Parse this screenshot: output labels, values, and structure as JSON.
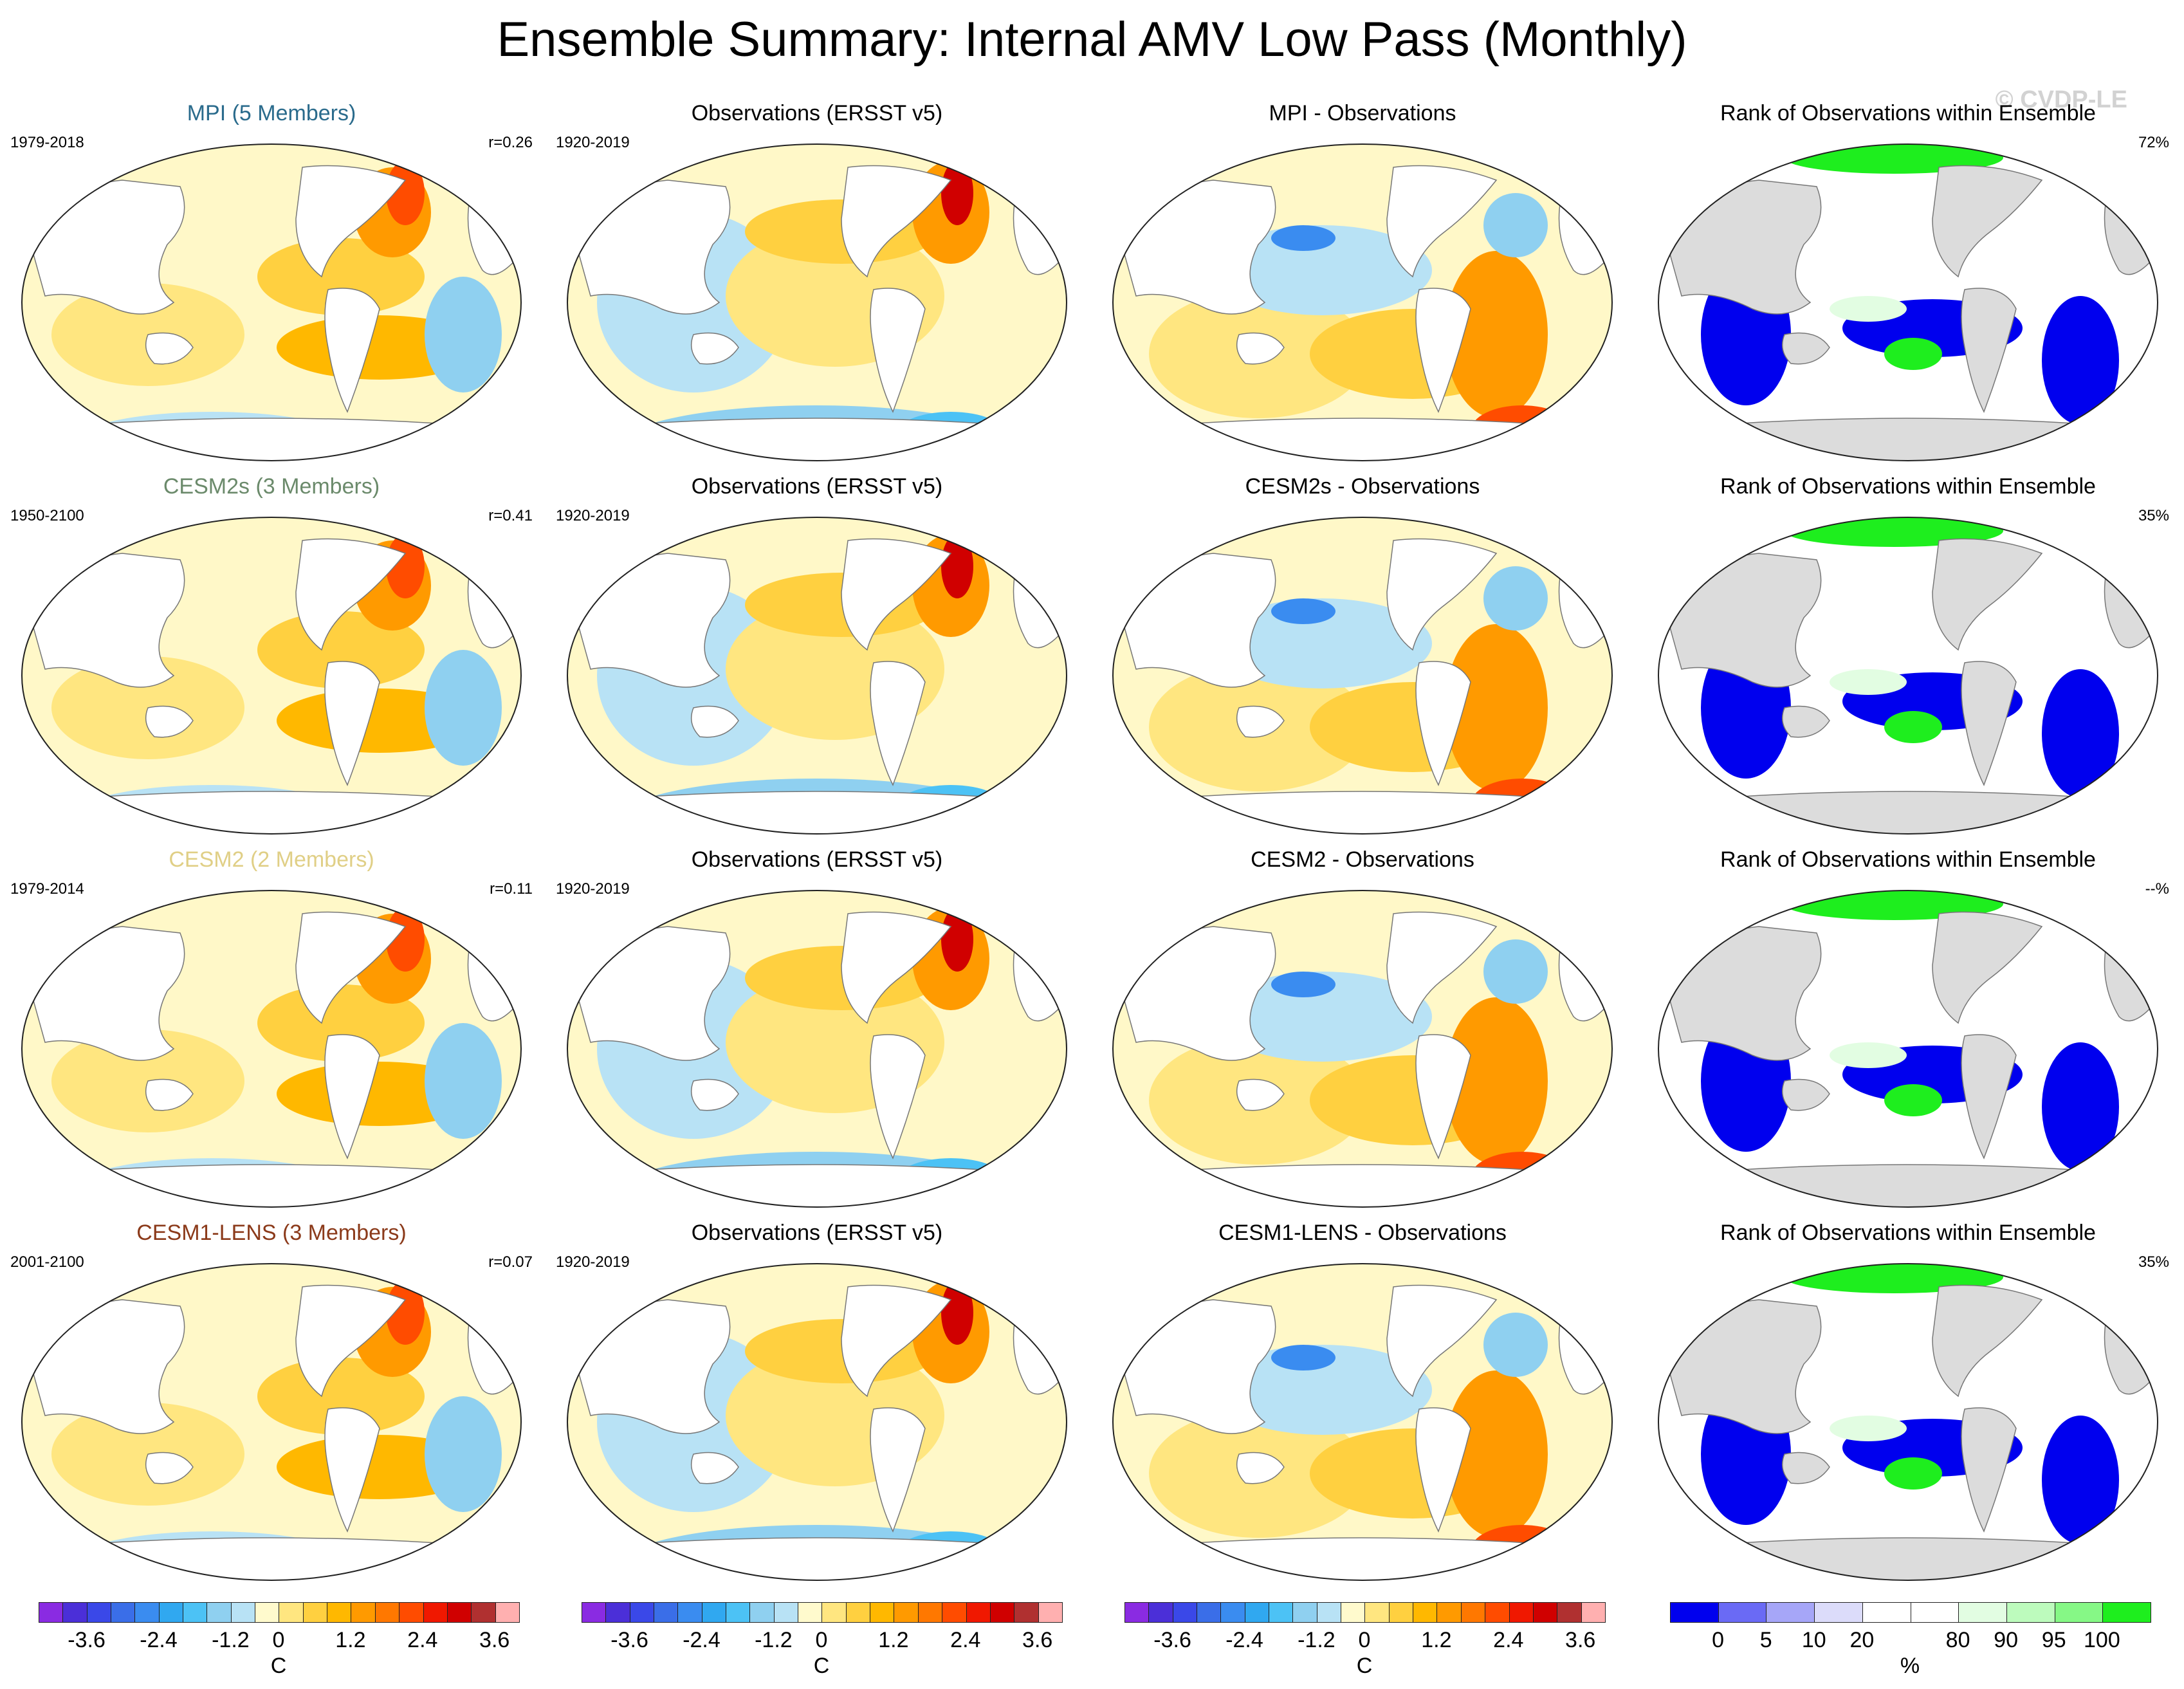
{
  "title": "Ensemble Summary: Internal AMV Low Pass (Monthly)",
  "watermark": "© CVDP-LE",
  "rows": [
    {
      "model": {
        "title": "MPI (5 Members)",
        "title_color": "#2a6b8c",
        "period": "1979-2018",
        "r": "r=0.26"
      },
      "obs": {
        "title": "Observations (ERSST v5)",
        "period": "1920-2019"
      },
      "diff": {
        "title": "MPI - Observations"
      },
      "rank": {
        "title": "Rank of Observations within Ensemble",
        "percent": "72%"
      }
    },
    {
      "model": {
        "title": "CESM2s (3 Members)",
        "title_color": "#6b8a6b",
        "period": "1950-2100",
        "r": "r=0.41"
      },
      "obs": {
        "title": "Observations (ERSST v5)",
        "period": "1920-2019"
      },
      "diff": {
        "title": "CESM2s - Observations"
      },
      "rank": {
        "title": "Rank of Observations within Ensemble",
        "percent": "35%"
      }
    },
    {
      "model": {
        "title": "CESM2 (2 Members)",
        "title_color": "#e0cf86",
        "period": "1979-2014",
        "r": "r=0.11"
      },
      "obs": {
        "title": "Observations (ERSST v5)",
        "period": "1920-2019"
      },
      "diff": {
        "title": "CESM2 - Observations"
      },
      "rank": {
        "title": "Rank of Observations within Ensemble",
        "percent": "--%"
      }
    },
    {
      "model": {
        "title": "CESM1-LENS (3 Members)",
        "title_color": "#8b3a1a",
        "period": "2001-2100",
        "r": "r=0.07"
      },
      "obs": {
        "title": "Observations (ERSST v5)",
        "period": "1920-2019"
      },
      "diff": {
        "title": "CESM1-LENS - Observations"
      },
      "rank": {
        "title": "Rank of Observations within Ensemble",
        "percent": "35%"
      }
    }
  ],
  "colorbars": {
    "temperature": {
      "colors": [
        "#8a2be2",
        "#4b2fd8",
        "#3a48e8",
        "#3a6ee8",
        "#3a8cf0",
        "#30a8f0",
        "#4cc2f5",
        "#8fd0f0",
        "#b8e2f5",
        "#fffacd",
        "#ffe680",
        "#ffd040",
        "#ffb800",
        "#ff9a00",
        "#ff7800",
        "#ff4c00",
        "#f01800",
        "#d00000",
        "#b03030",
        "#ffb0b0"
      ],
      "ticks": [
        "-3.6",
        "-2.4",
        "-1.2",
        "0",
        "1.2",
        "2.4",
        "3.6"
      ],
      "unit": "C"
    },
    "rank": {
      "colors": [
        "#0000ee",
        "#6a6af5",
        "#a6a6f8",
        "#dcdcfa",
        "#ffffff",
        "#ffffff",
        "#e2fde2",
        "#bdfbbd",
        "#86f886",
        "#1eee1e"
      ],
      "ticks": [
        "0",
        "5",
        "10",
        "20",
        "80",
        "90",
        "95",
        "100"
      ],
      "unit": "%"
    }
  }
}
